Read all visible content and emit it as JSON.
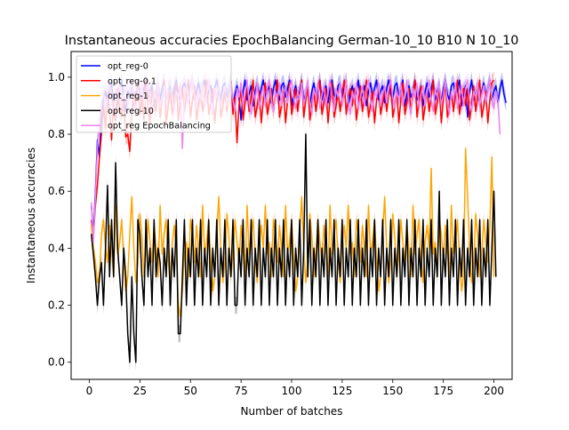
{
  "chart_data": {
    "type": "line",
    "title": "Instantaneous accuracies EpochBalancing German-10_10 B10 N 10_10",
    "xlabel": "Number of batches",
    "ylabel": "Instantaneous accuracies",
    "xlim": [
      -9,
      209
    ],
    "ylim": [
      -0.06,
      1.09
    ],
    "x_ticks": [
      0,
      25,
      50,
      75,
      100,
      125,
      150,
      175,
      200
    ],
    "y_ticks": [
      0.0,
      0.2,
      0.4,
      0.6,
      0.8,
      1.0
    ],
    "y_tick_labels": [
      "0.0",
      "0.2",
      "0.4",
      "0.6",
      "0.8",
      "1.0"
    ],
    "grid": false,
    "legend_position": "top-left",
    "shaded_bands": true,
    "x_start": 1,
    "x_step": 1,
    "series": [
      {
        "name": "opt_reg-0",
        "color": "#0000ff",
        "values": [
          0.55,
          0.45,
          0.6,
          0.78,
          0.72,
          0.88,
          0.92,
          0.95,
          0.9,
          0.95,
          0.98,
          0.9,
          0.85,
          0.92,
          0.96,
          0.99,
          0.92,
          0.88,
          0.95,
          0.93,
          0.99,
          0.9,
          0.94,
          0.97,
          0.95,
          0.92,
          0.96,
          0.99,
          0.93,
          0.95,
          0.97,
          0.9,
          0.94,
          0.98,
          0.92,
          0.96,
          0.99,
          0.91,
          0.95,
          0.97,
          0.93,
          0.96,
          0.99,
          0.94,
          0.92,
          0.96,
          0.98,
          0.95,
          0.93,
          0.97,
          0.99,
          0.92,
          0.95,
          0.98,
          0.94,
          0.96,
          0.99,
          0.93,
          0.95,
          0.97,
          0.91,
          0.96,
          0.99,
          0.94,
          0.92,
          0.97,
          0.98,
          0.93,
          0.96,
          0.99,
          0.9,
          0.94,
          0.97,
          0.93,
          0.85,
          0.95,
          0.99,
          0.92,
          0.94,
          0.97,
          0.9,
          0.95,
          0.98,
          0.93,
          0.96,
          0.99,
          0.92,
          0.95,
          0.97,
          0.91,
          0.96,
          0.99,
          0.94,
          0.92,
          0.97,
          0.98,
          0.93,
          0.96,
          0.99,
          0.9,
          0.94,
          0.97,
          0.93,
          0.95,
          0.99,
          0.92,
          0.94,
          0.97,
          0.9,
          0.95,
          0.98,
          0.93,
          0.96,
          0.99,
          0.92,
          0.95,
          0.97,
          0.91,
          0.96,
          0.99,
          0.94,
          0.92,
          0.97,
          0.98,
          0.93,
          0.96,
          0.99,
          0.9,
          0.94,
          0.97,
          0.93,
          0.95,
          0.99,
          0.92,
          0.94,
          0.97,
          0.9,
          0.95,
          0.98,
          0.93,
          0.96,
          0.99,
          0.92,
          0.95,
          0.97,
          0.91,
          0.96,
          0.99,
          0.94,
          0.92,
          0.97,
          0.98,
          0.93,
          0.96,
          0.99,
          0.9,
          0.94,
          0.97,
          0.93,
          0.95,
          0.99,
          0.92,
          0.94,
          0.97,
          0.9,
          0.95,
          0.98,
          0.93,
          0.96,
          0.99,
          0.92,
          0.95,
          0.97,
          0.91,
          0.96,
          0.99,
          0.94,
          0.92,
          0.97,
          0.98,
          0.93,
          0.96,
          0.99,
          0.9,
          0.94,
          0.97,
          0.86,
          0.95,
          0.99,
          0.92,
          0.94,
          0.97,
          0.9,
          0.95,
          0.98,
          0.93,
          0.96,
          0.99,
          0.92,
          0.95,
          0.97,
          0.91,
          0.96,
          0.99,
          0.94,
          0.91
        ]
      },
      {
        "name": "opt_reg-0.1",
        "color": "#ff0000",
        "values": [
          0.5,
          0.44,
          0.55,
          0.62,
          0.72,
          0.8,
          0.9,
          0.82,
          0.95,
          0.88,
          0.78,
          0.92,
          0.85,
          0.96,
          0.89,
          0.86,
          0.93,
          0.79,
          0.8,
          0.74,
          0.88,
          0.95,
          0.9,
          0.98,
          0.87,
          0.93,
          0.85,
          0.99,
          0.9,
          0.84,
          0.96,
          0.91,
          0.88,
          0.97,
          0.86,
          0.92,
          0.99,
          0.84,
          0.9,
          0.95,
          0.87,
          0.93,
          0.98,
          0.85,
          0.91,
          0.96,
          0.88,
          0.94,
          0.99,
          0.86,
          0.92,
          0.97,
          0.85,
          0.9,
          0.95,
          0.88,
          0.93,
          0.99,
          0.87,
          0.91,
          0.96,
          0.84,
          0.92,
          0.98,
          0.86,
          0.9,
          0.95,
          0.88,
          0.94,
          0.99,
          0.87,
          0.93,
          0.77,
          0.9,
          0.96,
          0.85,
          0.91,
          0.97,
          0.88,
          0.93,
          0.99,
          0.86,
          0.9,
          0.95,
          0.84,
          0.92,
          0.98,
          0.87,
          0.91,
          0.96,
          0.88,
          0.94,
          0.99,
          0.86,
          0.9,
          0.95,
          0.84,
          0.92,
          0.98,
          0.87,
          0.91,
          0.96,
          0.88,
          0.94,
          0.99,
          0.86,
          0.92,
          0.97,
          0.85,
          0.9,
          0.95,
          0.88,
          0.93,
          0.99,
          0.87,
          0.91,
          0.96,
          0.84,
          0.92,
          0.98,
          0.86,
          0.9,
          0.95,
          0.88,
          0.94,
          0.99,
          0.87,
          0.93,
          0.96,
          0.9,
          0.96,
          0.85,
          0.91,
          0.97,
          0.88,
          0.93,
          0.99,
          0.86,
          0.9,
          0.95,
          0.84,
          0.92,
          0.98,
          0.87,
          0.91,
          0.96,
          0.88,
          0.94,
          0.99,
          0.86,
          0.9,
          0.95,
          0.84,
          0.92,
          0.98,
          0.87,
          0.91,
          0.96,
          0.88,
          0.94,
          0.99,
          0.86,
          0.92,
          0.97,
          0.85,
          0.9,
          0.95,
          0.88,
          0.93,
          0.99,
          0.87,
          0.91,
          0.96,
          0.84,
          0.92,
          0.98,
          0.86,
          0.9,
          0.95,
          0.88,
          0.94,
          0.99,
          0.87,
          0.93,
          0.96,
          0.9,
          0.96,
          0.85,
          0.91,
          0.97,
          0.88,
          0.93,
          0.99,
          0.86,
          0.9,
          0.95,
          0.84,
          0.92,
          0.98,
          0.99
        ]
      },
      {
        "name": "opt_reg-1",
        "color": "#ffa500",
        "values": [
          0.48,
          0.4,
          0.35,
          0.28,
          0.3,
          0.45,
          0.5,
          0.4,
          0.35,
          0.48,
          0.4,
          0.3,
          0.55,
          0.38,
          0.42,
          0.5,
          0.36,
          0.25,
          0.3,
          0.45,
          0.58,
          0.4,
          0.28,
          0.35,
          0.52,
          0.44,
          0.3,
          0.38,
          0.5,
          0.42,
          0.35,
          0.48,
          0.4,
          0.3,
          0.55,
          0.38,
          0.45,
          0.5,
          0.36,
          0.28,
          0.42,
          0.48,
          0.4,
          0.2,
          0.16,
          0.25,
          0.38,
          0.42,
          0.3,
          0.5,
          0.45,
          0.35,
          0.48,
          0.4,
          0.3,
          0.55,
          0.38,
          0.42,
          0.5,
          0.36,
          0.25,
          0.3,
          0.45,
          0.58,
          0.4,
          0.28,
          0.35,
          0.52,
          0.44,
          0.3,
          0.38,
          0.5,
          0.42,
          0.35,
          0.48,
          0.4,
          0.3,
          0.55,
          0.38,
          0.45,
          0.5,
          0.36,
          0.28,
          0.42,
          0.48,
          0.4,
          0.55,
          0.38,
          0.42,
          0.3,
          0.5,
          0.45,
          0.35,
          0.48,
          0.4,
          0.3,
          0.55,
          0.38,
          0.42,
          0.5,
          0.36,
          0.25,
          0.3,
          0.45,
          0.58,
          0.4,
          0.28,
          0.35,
          0.52,
          0.44,
          0.3,
          0.38,
          0.5,
          0.42,
          0.35,
          0.48,
          0.4,
          0.3,
          0.55,
          0.38,
          0.45,
          0.5,
          0.36,
          0.28,
          0.42,
          0.48,
          0.4,
          0.55,
          0.38,
          0.42,
          0.3,
          0.5,
          0.45,
          0.35,
          0.48,
          0.4,
          0.3,
          0.55,
          0.38,
          0.42,
          0.5,
          0.36,
          0.25,
          0.3,
          0.45,
          0.58,
          0.4,
          0.28,
          0.35,
          0.52,
          0.44,
          0.3,
          0.38,
          0.5,
          0.42,
          0.35,
          0.48,
          0.4,
          0.3,
          0.55,
          0.38,
          0.45,
          0.5,
          0.36,
          0.28,
          0.42,
          0.48,
          0.4,
          0.68,
          0.38,
          0.42,
          0.3,
          0.5,
          0.45,
          0.35,
          0.48,
          0.4,
          0.3,
          0.55,
          0.38,
          0.42,
          0.5,
          0.36,
          0.25,
          0.3,
          0.75,
          0.58,
          0.4,
          0.28,
          0.35,
          0.52,
          0.44,
          0.3,
          0.38,
          0.5,
          0.42,
          0.35,
          0.48,
          0.72,
          0.3
        ]
      },
      {
        "name": "opt_reg-10",
        "color": "#000000",
        "values": [
          0.45,
          0.38,
          0.3,
          0.2,
          0.3,
          0.35,
          0.2,
          0.4,
          0.62,
          0.3,
          0.5,
          0.3,
          0.7,
          0.4,
          0.3,
          0.2,
          0.4,
          0.3,
          0.1,
          0.0,
          0.3,
          0.1,
          0.0,
          0.5,
          0.45,
          0.3,
          0.2,
          0.5,
          0.3,
          0.4,
          0.2,
          0.5,
          0.3,
          0.4,
          0.35,
          0.2,
          0.4,
          0.3,
          0.5,
          0.2,
          0.4,
          0.3,
          0.5,
          0.1,
          0.1,
          0.3,
          0.5,
          0.2,
          0.4,
          0.3,
          0.5,
          0.2,
          0.4,
          0.3,
          0.5,
          0.2,
          0.4,
          0.3,
          0.5,
          0.2,
          0.4,
          0.3,
          0.5,
          0.2,
          0.4,
          0.3,
          0.5,
          0.2,
          0.4,
          0.3,
          0.5,
          0.2,
          0.2,
          0.4,
          0.3,
          0.5,
          0.2,
          0.4,
          0.3,
          0.5,
          0.2,
          0.4,
          0.3,
          0.5,
          0.2,
          0.4,
          0.3,
          0.5,
          0.2,
          0.4,
          0.3,
          0.5,
          0.2,
          0.4,
          0.3,
          0.5,
          0.2,
          0.4,
          0.3,
          0.5,
          0.2,
          0.4,
          0.3,
          0.5,
          0.2,
          0.4,
          0.8,
          0.3,
          0.5,
          0.2,
          0.4,
          0.3,
          0.5,
          0.2,
          0.4,
          0.3,
          0.5,
          0.2,
          0.4,
          0.3,
          0.5,
          0.2,
          0.4,
          0.3,
          0.5,
          0.2,
          0.4,
          0.3,
          0.5,
          0.2,
          0.4,
          0.3,
          0.5,
          0.2,
          0.4,
          0.3,
          0.5,
          0.2,
          0.4,
          0.3,
          0.5,
          0.2,
          0.4,
          0.3,
          0.5,
          0.2,
          0.4,
          0.3,
          0.5,
          0.2,
          0.4,
          0.3,
          0.5,
          0.2,
          0.4,
          0.3,
          0.5,
          0.2,
          0.4,
          0.3,
          0.5,
          0.2,
          0.4,
          0.3,
          0.5,
          0.2,
          0.4,
          0.3,
          0.5,
          0.2,
          0.4,
          0.3,
          0.6,
          0.2,
          0.4,
          0.3,
          0.5,
          0.2,
          0.4,
          0.3,
          0.5,
          0.2,
          0.4,
          0.3,
          0.5,
          0.2,
          0.4,
          0.3,
          0.5,
          0.2,
          0.4,
          0.3,
          0.5,
          0.2,
          0.4,
          0.3,
          0.5,
          0.2,
          0.4,
          0.6,
          0.3
        ]
      },
      {
        "name": "opt_reg EpochBalancing",
        "color": "#ee82ee",
        "values": [
          0.56,
          0.42,
          0.58,
          0.75,
          0.85,
          0.9,
          0.95,
          0.88,
          0.93,
          0.99,
          0.91,
          0.87,
          0.96,
          0.92,
          0.98,
          0.89,
          0.94,
          0.97,
          0.9,
          0.95,
          0.99,
          0.92,
          0.88,
          0.96,
          0.93,
          0.98,
          0.9,
          0.94,
          0.99,
          0.91,
          0.87,
          0.95,
          0.92,
          0.98,
          0.89,
          0.93,
          0.97,
          0.9,
          0.96,
          0.99,
          0.92,
          0.88,
          0.95,
          0.93,
          0.98,
          0.75,
          0.94,
          0.97,
          0.91,
          0.96,
          0.99,
          0.93,
          0.89,
          0.95,
          0.92,
          0.98,
          0.9,
          0.94,
          0.99,
          0.91,
          0.87,
          0.96,
          0.93,
          0.98,
          0.89,
          0.94,
          0.97,
          0.9,
          0.95,
          0.99,
          0.92,
          0.88,
          0.96,
          0.93,
          0.98,
          0.9,
          0.94,
          0.99,
          0.91,
          0.87,
          0.95,
          0.92,
          0.98,
          0.89,
          0.93,
          0.97,
          0.9,
          0.96,
          0.99,
          0.92,
          0.88,
          0.95,
          0.93,
          0.98,
          0.9,
          0.94,
          0.97,
          0.91,
          0.96,
          0.99,
          0.93,
          0.89,
          0.95,
          0.92,
          0.98,
          0.9,
          0.94,
          0.99,
          0.91,
          0.87,
          0.96,
          0.93,
          0.98,
          0.89,
          0.94,
          0.97,
          0.9,
          0.95,
          0.99,
          0.92,
          0.88,
          0.96,
          0.93,
          0.98,
          0.9,
          0.94,
          0.99,
          0.91,
          0.87,
          0.95,
          0.92,
          0.98,
          0.89,
          0.93,
          0.97,
          0.9,
          0.96,
          0.99,
          0.92,
          0.88,
          0.95,
          0.93,
          0.98,
          0.9,
          0.94,
          0.97,
          0.91,
          0.96,
          0.99,
          0.93,
          0.89,
          0.95,
          0.92,
          0.98,
          0.9,
          0.94,
          0.99,
          0.91,
          0.87,
          0.96,
          0.93,
          0.98,
          0.89,
          0.94,
          0.97,
          0.9,
          0.95,
          0.99,
          0.92,
          0.88,
          0.96,
          0.93,
          0.98,
          0.9,
          0.94,
          0.99,
          0.91,
          0.87,
          0.95,
          0.92,
          0.98,
          0.89,
          0.93,
          0.97,
          0.9,
          0.96,
          0.99,
          0.92,
          0.88,
          0.95,
          0.93,
          0.98,
          0.9,
          0.94,
          0.97,
          0.91,
          0.96,
          0.99,
          0.93,
          0.89,
          0.95,
          0.92,
          0.8
        ]
      }
    ]
  }
}
